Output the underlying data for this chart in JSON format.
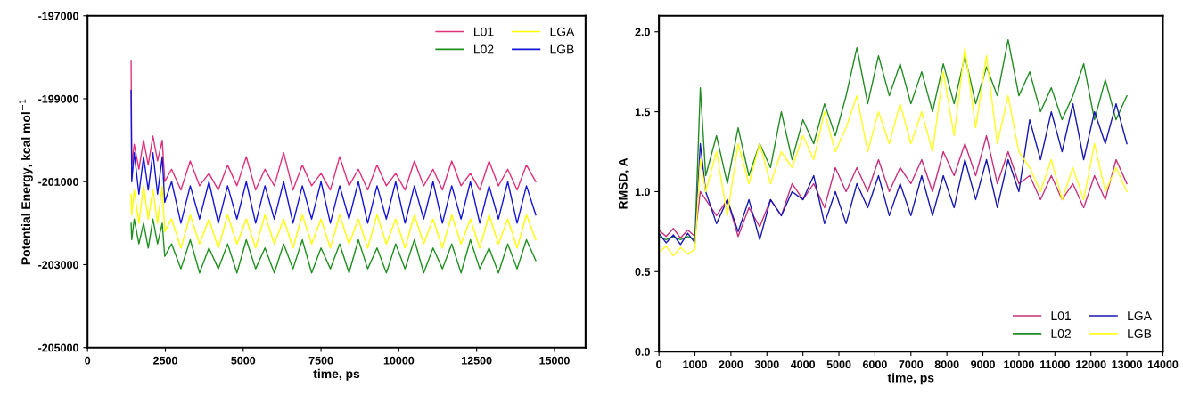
{
  "chart_data": [
    {
      "type": "line",
      "xlabel": "time, ps",
      "ylabel": "Potential Energy, kcal mol$^{−1}$",
      "xlim": [
        0,
        16000
      ],
      "xticks": [
        0,
        2500,
        5000,
        7500,
        10000,
        12500,
        15000
      ],
      "ylim": [
        -205000,
        -197000
      ],
      "yticks": [
        -205000,
        -203000,
        -201000,
        -199000,
        -197000
      ],
      "grid": false,
      "legend": "top right",
      "x": [
        1400,
        1420,
        1500,
        1650,
        1800,
        1950,
        2100,
        2250,
        2400,
        2480,
        2700,
        3000,
        3300,
        3600,
        3900,
        4200,
        4500,
        4800,
        5100,
        5400,
        5700,
        6000,
        6300,
        6600,
        6900,
        7200,
        7500,
        7800,
        8100,
        8400,
        8700,
        9000,
        9300,
        9600,
        9900,
        10200,
        10500,
        10800,
        11100,
        11400,
        11700,
        12000,
        12300,
        12600,
        12900,
        13200,
        13500,
        13800,
        14100,
        14400
      ],
      "series": [
        {
          "name": "L01",
          "color": "#e0307a",
          "values": [
            -198100,
            -200600,
            -200100,
            -200700,
            -200000,
            -200600,
            -199900,
            -200500,
            -200000,
            -201000,
            -200700,
            -201200,
            -200500,
            -201100,
            -200800,
            -201200,
            -200600,
            -201100,
            -200400,
            -201200,
            -200700,
            -201100,
            -200300,
            -201200,
            -200600,
            -201100,
            -200800,
            -201200,
            -200400,
            -201100,
            -200700,
            -201200,
            -200600,
            -201100,
            -200800,
            -201200,
            -200500,
            -201100,
            -200700,
            -201200,
            -200500,
            -201100,
            -200800,
            -201200,
            -200500,
            -201100,
            -200700,
            -201200,
            -200600,
            -201000
          ]
        },
        {
          "name": "L02",
          "color": "#1f8f1f",
          "values": [
            -202000,
            -202400,
            -201900,
            -202500,
            -202000,
            -202600,
            -201900,
            -202500,
            -202000,
            -202800,
            -202500,
            -203100,
            -202400,
            -203200,
            -202600,
            -203100,
            -202500,
            -203200,
            -202400,
            -203100,
            -202600,
            -203200,
            -202500,
            -203100,
            -202400,
            -203200,
            -202600,
            -203100,
            -202500,
            -203200,
            -202400,
            -203100,
            -202600,
            -203200,
            -202500,
            -203100,
            -202400,
            -203200,
            -202600,
            -203100,
            -202500,
            -203200,
            -202400,
            -203100,
            -202600,
            -203200,
            -202500,
            -203100,
            -202400,
            -202900
          ]
        },
        {
          "name": "LGA",
          "color": "#ffff00",
          "values": [
            -201300,
            -201800,
            -201200,
            -202000,
            -201100,
            -201900,
            -201200,
            -202000,
            -201100,
            -202200,
            -201900,
            -202600,
            -201800,
            -202500,
            -201900,
            -202600,
            -201800,
            -202500,
            -201900,
            -202600,
            -201800,
            -202500,
            -201900,
            -202600,
            -201800,
            -202500,
            -201900,
            -202600,
            -201800,
            -202500,
            -201900,
            -202600,
            -201800,
            -202500,
            -201900,
            -202600,
            -201800,
            -202500,
            -201900,
            -202600,
            -201800,
            -202500,
            -201900,
            -202600,
            -201800,
            -202500,
            -201900,
            -202600,
            -201800,
            -202400
          ]
        },
        {
          "name": "LGB",
          "color": "#1414d8",
          "values": [
            -198800,
            -201000,
            -200300,
            -201300,
            -200400,
            -201200,
            -200300,
            -201300,
            -200400,
            -201500,
            -201000,
            -202000,
            -201100,
            -201900,
            -201000,
            -202000,
            -201100,
            -201900,
            -201000,
            -202000,
            -201100,
            -201900,
            -201000,
            -202000,
            -201100,
            -201900,
            -201000,
            -202000,
            -201100,
            -201900,
            -201000,
            -202000,
            -201100,
            -201900,
            -201000,
            -202000,
            -201100,
            -201900,
            -201000,
            -202000,
            -201100,
            -201900,
            -201000,
            -202000,
            -201100,
            -201900,
            -201000,
            -202000,
            -201100,
            -201800
          ]
        }
      ]
    },
    {
      "type": "line",
      "xlabel": "time, ps",
      "ylabel": "RMSD, A",
      "xlim": [
        0,
        14000
      ],
      "xticks": [
        0,
        1000,
        2000,
        3000,
        4000,
        5000,
        6000,
        7000,
        8000,
        9000,
        10000,
        11000,
        12000,
        13000,
        14000
      ],
      "ylim": [
        0,
        2.1
      ],
      "yticks": [
        {
          "value": 0,
          "label": "0.0"
        },
        {
          "value": 0.5,
          "label": "0.5"
        },
        {
          "value": 1,
          "label": "1.0"
        },
        {
          "value": 1.5,
          "label": "1.5"
        },
        {
          "value": 2,
          "label": "2.0"
        }
      ],
      "grid": false,
      "legend": "bottom right",
      "x": [
        0,
        200,
        400,
        600,
        800,
        1000,
        1150,
        1300,
        1600,
        1900,
        2200,
        2500,
        2800,
        3100,
        3400,
        3700,
        4000,
        4300,
        4600,
        4900,
        5200,
        5500,
        5800,
        6100,
        6400,
        6700,
        7000,
        7300,
        7600,
        7900,
        8200,
        8500,
        8800,
        9100,
        9400,
        9700,
        10000,
        10300,
        10600,
        10900,
        11200,
        11500,
        11800,
        12100,
        12400,
        12700,
        13000
      ],
      "series": [
        {
          "name": "L01",
          "color": "#c8307e",
          "values": [
            0.76,
            0.72,
            0.77,
            0.71,
            0.76,
            0.72,
            1.0,
            0.95,
            0.85,
            0.95,
            0.72,
            0.9,
            0.78,
            0.95,
            0.85,
            1.05,
            0.95,
            1.05,
            0.9,
            1.15,
            1.0,
            1.15,
            1.0,
            1.2,
            1.0,
            1.15,
            1.05,
            1.2,
            1.0,
            1.25,
            1.1,
            1.3,
            1.1,
            1.35,
            1.05,
            1.25,
            1.05,
            1.1,
            0.95,
            1.1,
            0.95,
            1.05,
            0.9,
            1.1,
            0.95,
            1.2,
            1.05
          ]
        },
        {
          "name": "L02",
          "color": "#228b22",
          "values": [
            0.72,
            0.7,
            0.72,
            0.7,
            0.72,
            0.7,
            1.65,
            1.1,
            1.35,
            1.05,
            1.4,
            1.1,
            1.3,
            1.15,
            1.5,
            1.2,
            1.45,
            1.3,
            1.55,
            1.35,
            1.6,
            1.9,
            1.55,
            1.85,
            1.6,
            1.8,
            1.55,
            1.75,
            1.5,
            1.8,
            1.55,
            1.85,
            1.55,
            1.78,
            1.6,
            1.95,
            1.6,
            1.75,
            1.5,
            1.65,
            1.45,
            1.6,
            1.8,
            1.45,
            1.7,
            1.45,
            1.6
          ]
        },
        {
          "name": "LGA",
          "color": "#1818b0",
          "values": [
            0.74,
            0.68,
            0.73,
            0.67,
            0.74,
            0.68,
            1.3,
            1.0,
            0.8,
            0.95,
            0.75,
            0.95,
            0.7,
            0.95,
            0.85,
            1.0,
            0.95,
            1.1,
            0.8,
            1.0,
            0.8,
            1.05,
            0.9,
            1.1,
            0.85,
            1.05,
            0.85,
            1.1,
            0.85,
            1.1,
            0.9,
            1.2,
            0.95,
            1.2,
            0.9,
            1.2,
            1.0,
            1.45,
            1.2,
            1.5,
            1.25,
            1.55,
            1.2,
            1.5,
            1.3,
            1.55,
            1.3
          ]
        },
        {
          "name": "LGB",
          "color": "#ffff20",
          "values": [
            0.62,
            0.66,
            0.6,
            0.65,
            0.61,
            0.64,
            1.2,
            1.0,
            1.25,
            0.85,
            1.3,
            1.05,
            1.3,
            1.05,
            1.25,
            1.15,
            1.35,
            1.2,
            1.5,
            1.25,
            1.4,
            1.6,
            1.25,
            1.5,
            1.3,
            1.55,
            1.3,
            1.5,
            1.25,
            1.75,
            1.35,
            1.9,
            1.4,
            1.85,
            1.3,
            1.6,
            1.25,
            1.15,
            1.0,
            1.2,
            0.95,
            1.15,
            0.95,
            1.3,
            1.0,
            1.15,
            1.0
          ]
        }
      ]
    }
  ]
}
